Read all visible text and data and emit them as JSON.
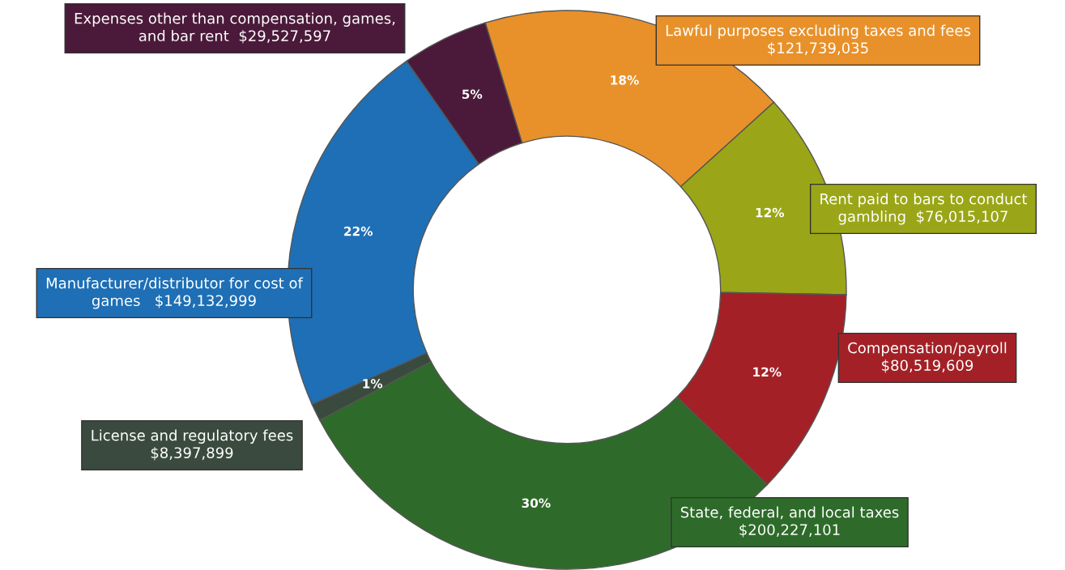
{
  "chart_data": {
    "type": "donut",
    "categories": [
      "Lawful purposes excluding taxes and fees\n$121,739,035",
      "Rent paid to bars to conduct\ngambling  $76,015,107",
      "Compensation/payroll\n$80,519,609",
      "State, federal, and local taxes\n$200,227,101",
      "License and regulatory fees\n$8,397,899",
      "Manufacturer/distributor for cost of\ngames   $149,132,999",
      "Expenses other than compensation, games,\nand bar rent  $29,527,597"
    ],
    "values": [
      18,
      12,
      12,
      30,
      1,
      22,
      5
    ],
    "value_labels": [
      "18%",
      "12%",
      "12%",
      "30%",
      "1%",
      "22%",
      "5%"
    ],
    "colors": [
      "#e8912a",
      "#9aa617",
      "#a32126",
      "#2e6b2a",
      "#3a4a3e",
      "#1e6fb5",
      "#4b1a3a"
    ]
  }
}
